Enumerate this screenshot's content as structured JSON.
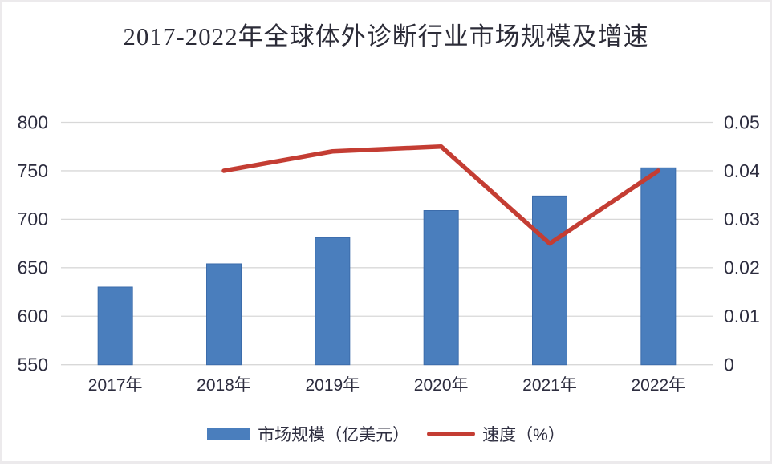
{
  "chart_data": {
    "type": "combo-bar-line",
    "title": "2017-2022年全球体外诊断行业市场规模及增速",
    "categories": [
      "2017年",
      "2018年",
      "2019年",
      "2020年",
      "2021年",
      "2022年"
    ],
    "series": [
      {
        "name": "市场规模（亿美元）",
        "type": "bar",
        "axis": "left",
        "color": "#4a7ebd",
        "border_color": "#3c6cab",
        "values": [
          630,
          654,
          681,
          709,
          724,
          753
        ]
      },
      {
        "name": "速度（%）",
        "type": "line",
        "axis": "right",
        "color": "#c43d33",
        "values": [
          null,
          0.04,
          0.044,
          0.045,
          0.025,
          0.04
        ]
      }
    ],
    "left_axis": {
      "min": 550,
      "max": 800,
      "step": 50,
      "tick_labels": [
        "800",
        "750",
        "700",
        "650",
        "600",
        "550"
      ]
    },
    "right_axis": {
      "min": 0,
      "max": 0.05,
      "step": 0.01,
      "tick_labels": [
        "0.05",
        "0.04",
        "0.03",
        "0.02",
        "0.01",
        "0"
      ]
    },
    "grid": true,
    "legend_position": "bottom"
  },
  "colors": {
    "gridline": "#d8d8d8",
    "axis_text": "#2d2d3f",
    "title_text": "#2c2c38",
    "background": "#ffffff",
    "frame": "#eceaec"
  }
}
